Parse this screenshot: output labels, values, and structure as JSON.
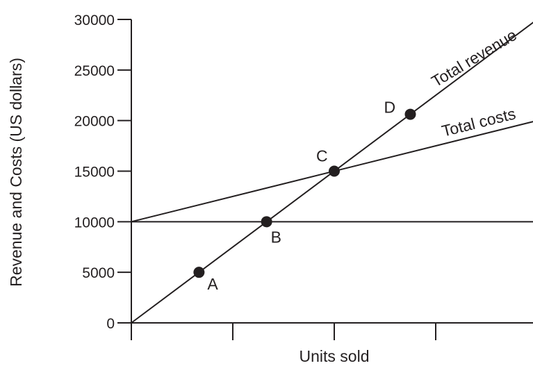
{
  "chart_data": {
    "type": "line",
    "title": "",
    "xlabel": "Units sold",
    "ylabel": "Revenue and Costs (US dollars)",
    "ylim": [
      0,
      30000
    ],
    "xlim": [
      0,
      4
    ],
    "yticks": [
      0,
      5000,
      10000,
      15000,
      20000,
      25000,
      30000
    ],
    "ytick_labels": [
      "0",
      "5000",
      "10000",
      "15000",
      "20000",
      "25000",
      "30000"
    ],
    "xticks": [
      0,
      1,
      2,
      3
    ],
    "grid": false,
    "series": [
      {
        "name": "Total revenue",
        "x": [
          0,
          4
        ],
        "y": [
          0,
          30000
        ],
        "color": "#231f20"
      },
      {
        "name": "Total costs",
        "x": [
          0,
          4
        ],
        "y": [
          10000,
          20000
        ],
        "color": "#231f20"
      }
    ],
    "reference_lines": [
      {
        "y": 10000
      }
    ],
    "points": [
      {
        "label": "A",
        "x": 0.667,
        "y": 5000
      },
      {
        "label": "B",
        "x": 1.333,
        "y": 10000
      },
      {
        "label": "C",
        "x": 2.0,
        "y": 15000
      },
      {
        "label": "D",
        "x": 2.75,
        "y": 20625
      }
    ]
  }
}
